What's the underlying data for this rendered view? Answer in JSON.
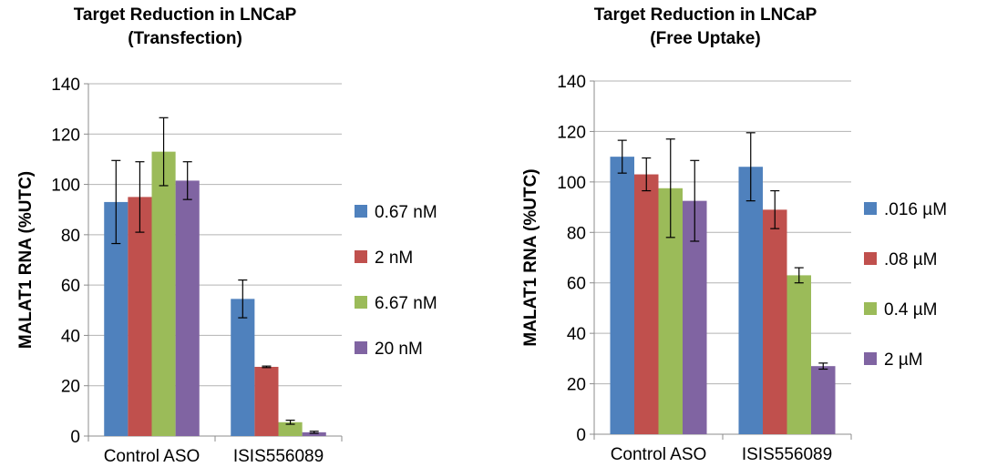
{
  "chart_data": [
    {
      "type": "bar",
      "title_lines": [
        "Target Reduction in LNCaP",
        "(Transfection)"
      ],
      "xlabel": "",
      "ylabel": "MALAT1 RNA (%UTC)",
      "ylim": [
        0,
        140
      ],
      "yticks": [
        0,
        20,
        40,
        60,
        80,
        100,
        120,
        140
      ],
      "grid": true,
      "legend_position": "right",
      "categories": [
        "Control ASO",
        "ISIS556089"
      ],
      "series": [
        {
          "name": "0.67 nM",
          "color": "#4f81bd",
          "values": [
            93,
            54.5
          ],
          "errors": [
            16.5,
            7.5
          ]
        },
        {
          "name": "2 nM",
          "color": "#c0504d",
          "values": [
            95,
            27.5
          ],
          "errors": [
            14,
            0.3
          ]
        },
        {
          "name": "6.67 nM",
          "color": "#9bbb59",
          "values": [
            113,
            5.5
          ],
          "errors": [
            13.5,
            0.8
          ]
        },
        {
          "name": "20 nM",
          "color": "#8064a2",
          "values": [
            101.5,
            1.5
          ],
          "errors": [
            7.5,
            0.4
          ]
        }
      ]
    },
    {
      "type": "bar",
      "title_lines": [
        "Target Reduction in LNCaP",
        "(Free Uptake)"
      ],
      "xlabel": "",
      "ylabel": "MALAT1 RNA (%UTC)",
      "ylim": [
        0,
        140
      ],
      "yticks": [
        0,
        20,
        40,
        60,
        80,
        100,
        120,
        140
      ],
      "grid": true,
      "legend_position": "right",
      "categories": [
        "Control ASO",
        "ISIS556089"
      ],
      "series": [
        {
          "name": ".016 µM",
          "color": "#4f81bd",
          "values": [
            110,
            106
          ],
          "errors": [
            6.5,
            13.5
          ]
        },
        {
          "name": ".08 µM",
          "color": "#c0504d",
          "values": [
            103,
            89
          ],
          "errors": [
            6.5,
            7.5
          ]
        },
        {
          "name": "0.4 µM",
          "color": "#9bbb59",
          "values": [
            97.5,
            63
          ],
          "errors": [
            19.5,
            3
          ]
        },
        {
          "name": "2 µM",
          "color": "#8064a2",
          "values": [
            92.5,
            27
          ],
          "errors": [
            16,
            1.2
          ]
        }
      ]
    }
  ]
}
